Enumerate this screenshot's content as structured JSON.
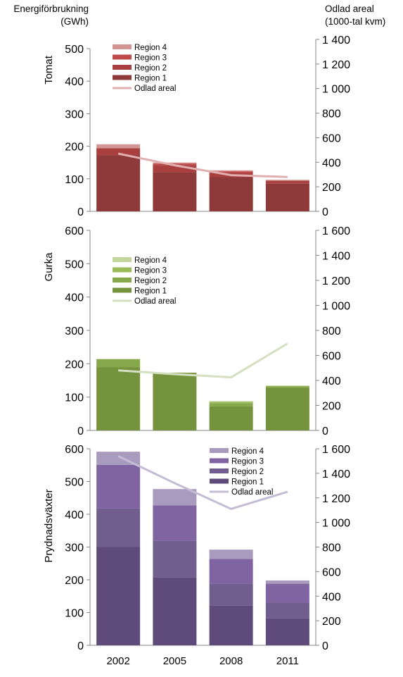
{
  "left_axis_title": [
    "Energiförbrukning",
    "(GWh)"
  ],
  "right_axis_title": [
    "Odlad areal",
    "(1000-tal kvm)"
  ],
  "colors": {
    "tomat": [
      "#8e3a3a",
      "#a9403f",
      "#bf4a4a",
      "#d39494"
    ],
    "tomat_line": "#e0b0b0",
    "gurka": [
      "#75923c",
      "#86a84a",
      "#9bbb59",
      "#c3d69b"
    ],
    "gurka_line": "#d4e0c0",
    "pryd": [
      "#5f4b7b",
      "#705e8f",
      "#8064a2",
      "#a99bbd"
    ],
    "pryd_line": "#c4bcd4"
  },
  "chart_data": [
    {
      "type": "bar",
      "stacked": true,
      "title": "Tomat",
      "categories": [
        "2002",
        "2005",
        "2008",
        "2011"
      ],
      "series": [
        {
          "name": "Region 1",
          "values": [
            172,
            120,
            105,
            85
          ]
        },
        {
          "name": "Region 2",
          "values": [
            22,
            22,
            13,
            9
          ]
        },
        {
          "name": "Region 3",
          "values": [
            0,
            5,
            5,
            0
          ]
        },
        {
          "name": "Region 4",
          "values": [
            12,
            3,
            3,
            3
          ]
        }
      ],
      "line": {
        "name": "Odlad areal",
        "values": [
          470,
          375,
          295,
          280
        ],
        "axis": "right"
      },
      "ylim": [
        0,
        500
      ],
      "yticks": [
        "0",
        "100",
        "200",
        "300",
        "400",
        "500"
      ],
      "y2lim": [
        0,
        1500
      ],
      "y2ticks": [
        "0",
        "200",
        "400",
        "600",
        "800",
        "1 000",
        "1 200",
        "1 400"
      ],
      "legend": "top-left"
    },
    {
      "type": "bar",
      "stacked": true,
      "title": "Gurka",
      "categories": [
        "2002",
        "2005",
        "2008",
        "2011"
      ],
      "series": [
        {
          "name": "Region 1",
          "values": [
            190,
            173,
            72,
            128
          ]
        },
        {
          "name": "Region 2",
          "values": [
            24,
            0,
            10,
            4
          ]
        },
        {
          "name": "Region 3",
          "values": [
            0,
            0,
            4,
            2
          ]
        },
        {
          "name": "Region 4",
          "values": [
            0,
            0,
            2,
            0
          ]
        }
      ],
      "line": {
        "name": "Odlad areal",
        "values": [
          480,
          450,
          425,
          695
        ],
        "axis": "right"
      },
      "ylim": [
        0,
        600
      ],
      "yticks": [
        "0",
        "100",
        "200",
        "300",
        "400",
        "500",
        "600"
      ],
      "y2lim": [
        0,
        1600
      ],
      "y2ticks": [
        "0",
        "200",
        "400",
        "600",
        "800",
        "1 000",
        "1 200",
        "1 400",
        "1 600"
      ],
      "legend": "top-left"
    },
    {
      "type": "bar",
      "stacked": true,
      "title": "Prydnadsväxter",
      "categories": [
        "2002",
        "2005",
        "2008",
        "2011"
      ],
      "series": [
        {
          "name": "Region 1",
          "values": [
            300,
            208,
            122,
            82
          ]
        },
        {
          "name": "Region 2",
          "values": [
            118,
            112,
            66,
            48
          ]
        },
        {
          "name": "Region 3",
          "values": [
            133,
            107,
            76,
            58
          ]
        },
        {
          "name": "Region 4",
          "values": [
            40,
            50,
            28,
            10
          ]
        }
      ],
      "line": {
        "name": "Odlad areal",
        "values": [
          1540,
          1320,
          1110,
          1250
        ],
        "axis": "right"
      },
      "ylim": [
        0,
        600
      ],
      "yticks": [
        "0",
        "100",
        "200",
        "300",
        "400",
        "500",
        "600"
      ],
      "y2lim": [
        0,
        1600
      ],
      "y2ticks": [
        "0",
        "200",
        "400",
        "600",
        "800",
        "1 000",
        "1 200",
        "1 400",
        "1 600"
      ],
      "legend": "top-right"
    }
  ]
}
